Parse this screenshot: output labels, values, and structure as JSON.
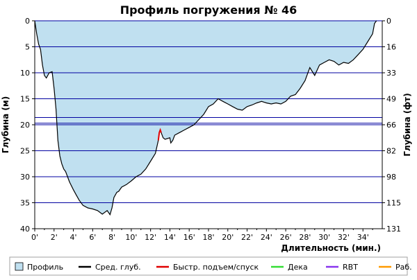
{
  "chart_data": {
    "type": "area",
    "title": "Профиль погружения № 46",
    "xlabel": "Длительность (мин.)",
    "ylabel_left": "Глубина (м)",
    "ylabel_right": "Глубина (фт)",
    "x_range": [
      0,
      36
    ],
    "y_range_m": [
      0,
      40
    ],
    "y_inverted": true,
    "x_ticks": [
      "0'",
      "2'",
      "4'",
      "6'",
      "8'",
      "10'",
      "12'",
      "14'",
      "16'",
      "18'",
      "20'",
      "22'",
      "24'",
      "26'",
      "28'",
      "30'",
      "32'",
      "34'"
    ],
    "x_tick_values": [
      0,
      2,
      4,
      6,
      8,
      10,
      12,
      14,
      16,
      18,
      20,
      22,
      24,
      26,
      28,
      30,
      32,
      34
    ],
    "y_ticks_left": [
      "0",
      "5",
      "10",
      "15",
      "20",
      "25",
      "30",
      "35",
      "40"
    ],
    "y_tick_values_left": [
      0,
      5,
      10,
      15,
      20,
      25,
      30,
      35,
      40
    ],
    "y_ticks_right": [
      "0",
      "16",
      "33",
      "49",
      "66",
      "82",
      "98",
      "115",
      "131"
    ],
    "reference_lines_m": [
      18.6,
      19.7
    ],
    "fill_color": "#c0e0f0",
    "line_color": "#000000",
    "fast_ascent_color": "#e00000",
    "grid_color": "#0000a0",
    "series": [
      {
        "name": "Профиль",
        "x": [
          0,
          0.2,
          0.4,
          0.6,
          0.8,
          1.0,
          1.2,
          1.5,
          1.8,
          2.0,
          2.2,
          2.4,
          2.6,
          2.8,
          3.0,
          3.2,
          3.4,
          3.6,
          4.0,
          4.3,
          4.6,
          5.0,
          5.5,
          6.0,
          6.5,
          7.0,
          7.5,
          7.8,
          8.0,
          8.2,
          8.5,
          8.7,
          9.0,
          9.5,
          10.0,
          10.5,
          11.0,
          11.5,
          12.0,
          12.5,
          12.8,
          12.9,
          13.0,
          13.1,
          13.3,
          13.5,
          14.0,
          14.1,
          14.3,
          14.5,
          15.0,
          15.5,
          16.0,
          16.5,
          17.0,
          17.5,
          18.0,
          18.5,
          19.0,
          19.5,
          20.0,
          20.5,
          21.0,
          21.5,
          22.0,
          22.5,
          23.0,
          23.5,
          24.0,
          24.5,
          25.0,
          25.5,
          26.0,
          26.5,
          27.0,
          27.5,
          28.0,
          28.5,
          29.0,
          29.5,
          30.0,
          30.5,
          31.0,
          31.5,
          32.0,
          32.5,
          33.0,
          33.5,
          34.0,
          34.5,
          35.0,
          35.2,
          35.4
        ],
        "depth_m": [
          0,
          2.5,
          4.5,
          5.5,
          8.5,
          10.5,
          11,
          10,
          9.8,
          13,
          17,
          23,
          26,
          27.5,
          28.5,
          29,
          30,
          31,
          32.5,
          33.5,
          34.5,
          35.5,
          36,
          36.2,
          36.5,
          37.2,
          36.5,
          37.3,
          36,
          34,
          33,
          32.8,
          32,
          31.5,
          30.8,
          30,
          29.5,
          28.5,
          27,
          25.5,
          23,
          21.5,
          21,
          21.5,
          22.5,
          22.8,
          22.5,
          23.5,
          23,
          22,
          21.5,
          21,
          20.5,
          20,
          19,
          18,
          16.5,
          16,
          15,
          15.5,
          16,
          16.5,
          17,
          17.2,
          16.5,
          16.2,
          15.8,
          15.5,
          15.8,
          16,
          15.8,
          16,
          15.5,
          14.5,
          14.2,
          13,
          11.5,
          9,
          10.5,
          8.5,
          8,
          7.5,
          7.8,
          8.5,
          8,
          8.2,
          7.5,
          6.5,
          5.5,
          4,
          2.5,
          0.5,
          0
        ]
      }
    ],
    "fast_ascent_segment": {
      "x": [
        12.8,
        12.9,
        13.0,
        13.1
      ],
      "depth_m": [
        23,
        21.5,
        21,
        21.5
      ]
    },
    "legend": [
      {
        "label": "Профиль",
        "color": "#c0e0f0",
        "kind": "box"
      },
      {
        "label": "Сред. глуб.",
        "color": "#000000",
        "kind": "line"
      },
      {
        "label": "Быстр. подъем/спуск",
        "color": "#e00000",
        "kind": "line"
      },
      {
        "label": "Дека",
        "color": "#33dd33",
        "kind": "line"
      },
      {
        "label": "RBT",
        "color": "#8833ee",
        "kind": "line"
      },
      {
        "label": "Раб.",
        "color": "#ff9900",
        "kind": "line"
      }
    ],
    "legend_position": "bottom"
  }
}
